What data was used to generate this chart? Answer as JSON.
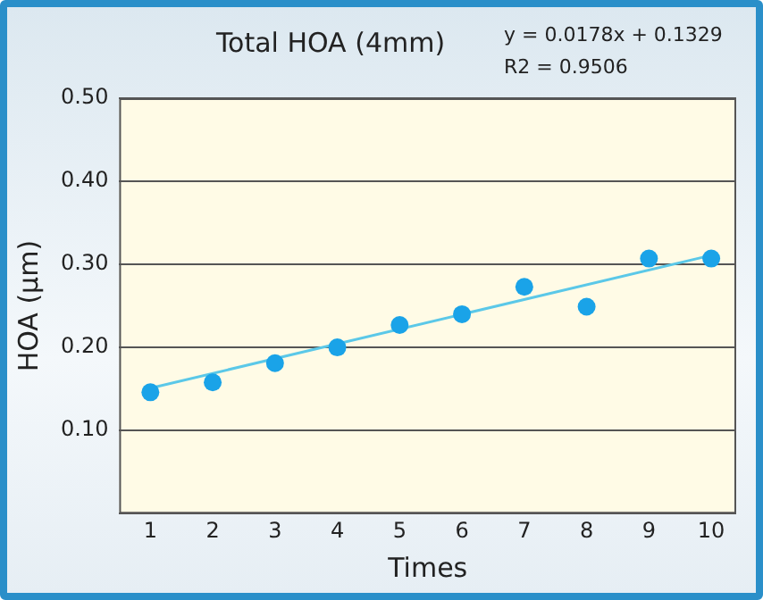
{
  "chart_data": {
    "type": "scatter",
    "title": "Total HOA (4mm)",
    "xlabel": "Times",
    "ylabel": "HOA (µm)",
    "annotations": [
      "y = 0.0178x + 0.1329",
      "R2 = 0.9506"
    ],
    "x": [
      1,
      2,
      3,
      4,
      5,
      6,
      7,
      8,
      9,
      10
    ],
    "series": [
      {
        "color": "#1aa3e8",
        "values": [
          0.146,
          0.158,
          0.181,
          0.2,
          0.227,
          0.24,
          0.273,
          0.249,
          0.307,
          0.307
        ],
        "marker": "circle"
      },
      {
        "type": "line",
        "color": "#5bc8e8",
        "x": [
          1,
          10
        ],
        "values": [
          0.151,
          0.311
        ],
        "marker": "none"
      }
    ],
    "xlim": [
      0.5,
      10.4
    ],
    "xticks": [
      1,
      2,
      3,
      4,
      5,
      6,
      7,
      8,
      9,
      10
    ],
    "ylim": [
      0,
      0.5
    ],
    "yticks": [
      {
        "value": 0,
        "label": null
      },
      {
        "value": 0.1,
        "label": "0.10"
      },
      {
        "value": 0.2,
        "label": "0.20"
      },
      {
        "value": 0.3,
        "label": "0.30"
      },
      {
        "value": 0.4,
        "label": "0.40"
      },
      {
        "value": 0.5,
        "label": "0.50"
      }
    ],
    "grid": "y",
    "legend": false
  }
}
